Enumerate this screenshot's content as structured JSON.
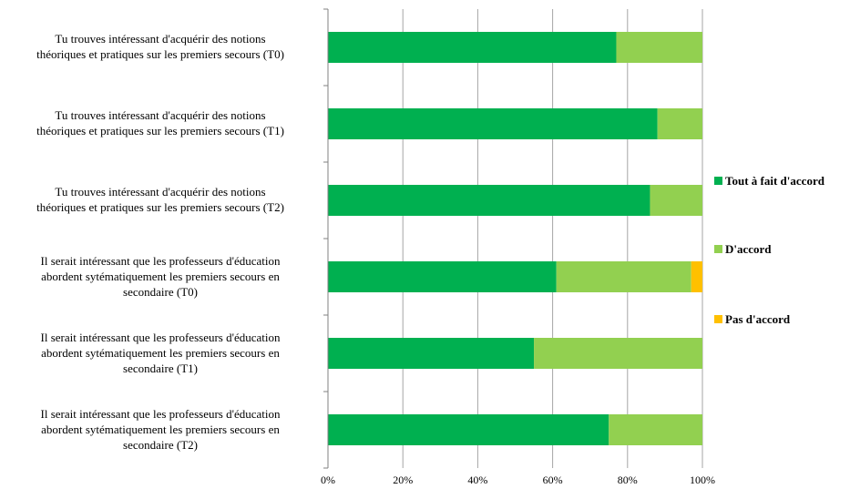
{
  "chart_data": {
    "type": "bar",
    "orientation": "horizontal",
    "stacked": "percent",
    "categories": [
      "Tu trouves intéressant d'acquérir des notions\nthéoriques et pratiques sur les premiers secours (T0)",
      "Tu trouves intéressant d'acquérir des notions\nthéoriques et pratiques sur les premiers secours (T1)",
      "Tu trouves intéressant d'acquérir des notions\nthéoriques et pratiques sur les premiers secours (T2)",
      "Il serait intéressant que les professeurs d'éducation\nabordent sytématiquement les premiers secours en\nsecondaire (T0)",
      "Il serait intéressant que les professeurs d'éducation\nabordent sytématiquement les premiers secours en\nsecondaire (T1)",
      "Il serait intéressant que les professeurs d'éducation\nabordent sytématiquement les premiers secours en\nsecondaire (T2)"
    ],
    "series": [
      {
        "name": "Tout à fait d'accord",
        "color": "#00b050",
        "values": [
          77,
          88,
          86,
          61,
          55,
          75
        ]
      },
      {
        "name": "D'accord",
        "color": "#92d050",
        "values": [
          23,
          12,
          14,
          36,
          45,
          25
        ]
      },
      {
        "name": "Pas d'accord",
        "color": "#ffc000",
        "values": [
          0,
          0,
          0,
          3,
          0,
          0
        ]
      }
    ],
    "xticks": [
      "0%",
      "20%",
      "40%",
      "60%",
      "80%",
      "100%"
    ],
    "xlim": [
      0,
      100
    ],
    "grid": true,
    "legend_position": "right",
    "title": "",
    "xlabel": "",
    "ylabel": ""
  }
}
